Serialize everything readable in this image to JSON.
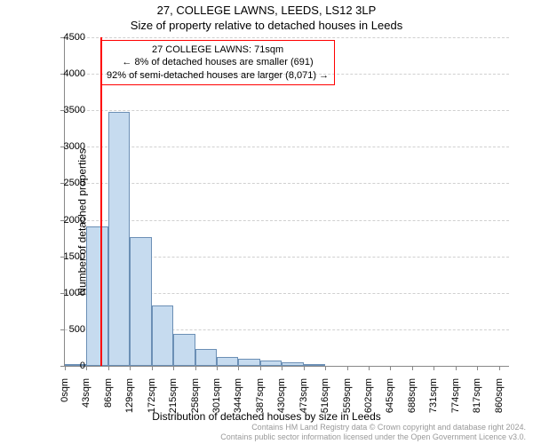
{
  "titles": {
    "main": "27, COLLEGE LAWNS, LEEDS, LS12 3LP",
    "sub": "Size of property relative to detached houses in Leeds"
  },
  "chart": {
    "type": "histogram",
    "xlabel": "Distribution of detached houses by size in Leeds",
    "ylabel": "Number of detached properties",
    "ylim": [
      0,
      4500
    ],
    "ytick_step": 500,
    "yticks": [
      0,
      500,
      1000,
      1500,
      2000,
      2500,
      3000,
      3500,
      4000,
      4500
    ],
    "xlim": [
      0,
      880
    ],
    "xticks": [
      0,
      43,
      86,
      129,
      172,
      215,
      258,
      301,
      344,
      387,
      430,
      473,
      516,
      559,
      602,
      645,
      688,
      731,
      774,
      817,
      860
    ],
    "xtick_labels": [
      "0sqm",
      "43sqm",
      "86sqm",
      "129sqm",
      "172sqm",
      "215sqm",
      "258sqm",
      "301sqm",
      "344sqm",
      "387sqm",
      "430sqm",
      "473sqm",
      "516sqm",
      "559sqm",
      "602sqm",
      "645sqm",
      "688sqm",
      "731sqm",
      "774sqm",
      "817sqm",
      "860sqm"
    ],
    "bars": [
      {
        "x_start": 0,
        "x_end": 43,
        "value": 10
      },
      {
        "x_start": 43,
        "x_end": 86,
        "value": 1910
      },
      {
        "x_start": 86,
        "x_end": 129,
        "value": 3480
      },
      {
        "x_start": 129,
        "x_end": 172,
        "value": 1760
      },
      {
        "x_start": 172,
        "x_end": 215,
        "value": 830
      },
      {
        "x_start": 215,
        "x_end": 258,
        "value": 440
      },
      {
        "x_start": 258,
        "x_end": 301,
        "value": 230
      },
      {
        "x_start": 301,
        "x_end": 344,
        "value": 120
      },
      {
        "x_start": 344,
        "x_end": 387,
        "value": 100
      },
      {
        "x_start": 387,
        "x_end": 430,
        "value": 70
      },
      {
        "x_start": 430,
        "x_end": 473,
        "value": 50
      },
      {
        "x_start": 473,
        "x_end": 516,
        "value": 30
      }
    ],
    "bar_fill_color": "#c6dbef",
    "bar_border_color": "#6b8fb5",
    "grid_color": "#d0d0d0",
    "background_color": "#ffffff",
    "axis_color": "#888888",
    "marker": {
      "x": 71,
      "color": "#ff0000"
    },
    "annotation": {
      "border_color": "#ff0000",
      "lines": [
        "27 COLLEGE LAWNS: 71sqm",
        "← 8% of detached houses are smaller (691)",
        "92% of semi-detached houses are larger (8,071) →"
      ]
    },
    "title_fontsize": 13,
    "label_fontsize": 12,
    "tick_fontsize": 11
  },
  "footer": {
    "line1": "Contains HM Land Registry data © Crown copyright and database right 2024.",
    "line2": "Contains public sector information licensed under the Open Government Licence v3.0."
  }
}
